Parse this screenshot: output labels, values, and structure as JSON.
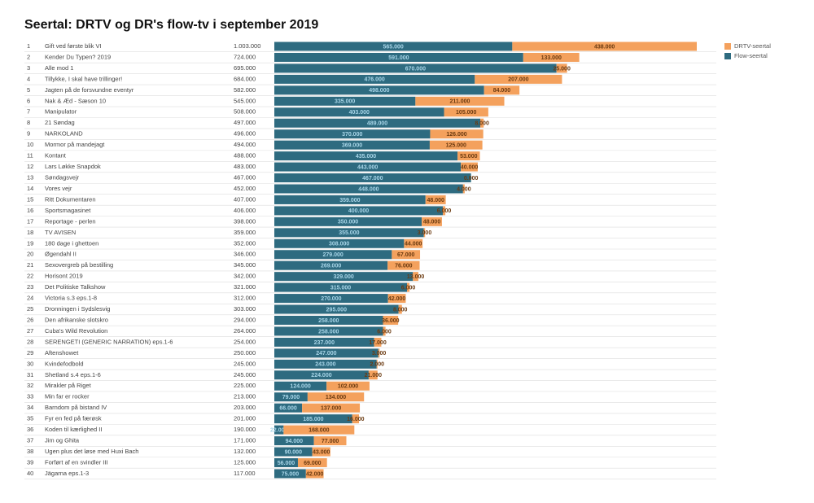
{
  "chart_data": {
    "type": "stacked-barh",
    "title": "Seertal: DRTV og DR's flow-tv i september 2019",
    "ranks": [
      1,
      2,
      3,
      4,
      5,
      6,
      7,
      8,
      9,
      10,
      11,
      12,
      13,
      14,
      15,
      16,
      17,
      18,
      19,
      20,
      21,
      22,
      23,
      24,
      25,
      26,
      27,
      28,
      29,
      30,
      31,
      32,
      33,
      34,
      35,
      36,
      37,
      38,
      39,
      40
    ],
    "categories": [
      "Gift ved første blik VI",
      "Kender Du Typen? 2019",
      "Alle mod 1",
      "Tillykke, I skal have trillinger!",
      "Jagten på de forsvundne eventyr",
      "Nak & Æd - Sæson 10",
      "Manipulator",
      "21 Søndag",
      "NARKOLAND",
      "Mormor på mandejagt",
      "Kontant",
      "Lars Løkke Snapdok",
      "Søndagsvejr",
      "Vores vejr",
      "Ritt Dokumentaren",
      "Sportsmagasinet",
      "Reportage - perlen",
      "TV AVISEN",
      "180 dage i ghettoen",
      "Øgendahl II",
      "Sexovergreb på bestilling",
      "Horisont 2019",
      "Det Politiske Talkshow",
      "Victoria s.3 eps.1-8",
      "Dronningen i Sydslesvig",
      "Den afrikanske slotskro",
      "Cuba's Wild Revolution",
      "SERENGETI (GENERIC NARRATION) eps.1-6",
      "Aftenshowet",
      "Kvindefodbold",
      "Shetland s.4 eps.1-6",
      "Mirakler på Riget",
      "Min far er rocker",
      "Barndom på bistand IV",
      "Fyr en fed på færøsk",
      "Koden til kærlighed II",
      "Jim og Ghita",
      "Ugen plus det løse med Huxi Bach",
      "Forført af en svindler III",
      "Jägarna eps.1-3"
    ],
    "totals": {
      "values": [
        1003000,
        724000,
        695000,
        684000,
        582000,
        545000,
        508000,
        497000,
        496000,
        494000,
        488000,
        483000,
        467000,
        452000,
        407000,
        406000,
        398000,
        359000,
        352000,
        346000,
        345000,
        342000,
        321000,
        312000,
        303000,
        294000,
        264000,
        254000,
        250000,
        245000,
        245000,
        225000,
        213000,
        203000,
        201000,
        190000,
        171000,
        132000,
        125000,
        117000
      ],
      "value_labels": [
        "1.003.000",
        "724.000",
        "695.000",
        "684.000",
        "582.000",
        "545.000",
        "508.000",
        "497.000",
        "496.000",
        "494.000",
        "488.000",
        "483.000",
        "467.000",
        "452.000",
        "407.000",
        "406.000",
        "398.000",
        "359.000",
        "352.000",
        "346.000",
        "345.000",
        "342.000",
        "321.000",
        "312.000",
        "303.000",
        "294.000",
        "264.000",
        "254.000",
        "250.000",
        "245.000",
        "245.000",
        "225.000",
        "213.000",
        "203.000",
        "201.000",
        "190.000",
        "171.000",
        "132.000",
        "125.000",
        "117.000"
      ]
    },
    "series": [
      {
        "name": "Flow-seertal",
        "color": "#2e6b80",
        "values": [
          565000,
          591000,
          670000,
          476000,
          498000,
          335000,
          403000,
          489000,
          370000,
          369000,
          435000,
          443000,
          467000,
          448000,
          359000,
          400000,
          350000,
          355000,
          308000,
          279000,
          269000,
          329000,
          315000,
          270000,
          295000,
          258000,
          258000,
          237000,
          247000,
          243000,
          224000,
          124000,
          79000,
          66000,
          185000,
          22000,
          94000,
          90000,
          56000,
          75000
        ],
        "value_labels": [
          "565.000",
          "591.000",
          "670.000",
          "476.000",
          "498.000",
          "335.000",
          "403.000",
          "489.000",
          "370.000",
          "369.000",
          "435.000",
          "443.000",
          "467.000",
          "448.000",
          "359.000",
          "400.000",
          "350.000",
          "355.000",
          "308.000",
          "279.000",
          "269.000",
          "329.000",
          "315.000",
          "270.000",
          "295.000",
          "258.000",
          "258.000",
          "237.000",
          "247.000",
          "243.000",
          "224.000",
          "124.000",
          "79.000",
          "66.000",
          "185.000",
          "22.000",
          "94.000",
          "90.000",
          "56.000",
          "75.000"
        ]
      },
      {
        "name": "DRTV-seertal",
        "color": "#f4a15d",
        "values": [
          438000,
          133000,
          25000,
          207000,
          84000,
          211000,
          105000,
          8000,
          126000,
          125000,
          53000,
          40000,
          0,
          4000,
          48000,
          6000,
          48000,
          3000,
          44000,
          67000,
          76000,
          13000,
          6000,
          42000,
          8000,
          36000,
          6000,
          17000,
          3000,
          2000,
          21000,
          102000,
          134000,
          137000,
          16000,
          168000,
          77000,
          43000,
          69000,
          42000
        ],
        "value_labels": [
          "438.000",
          "133.000",
          "25.000",
          "207.000",
          "84.000",
          "211.000",
          "105.000",
          "8.000",
          "126.000",
          "125.000",
          "53.000",
          "40.000",
          "0.000",
          "4.000",
          "48.000",
          "6.000",
          "48.000",
          "3.000",
          "44.000",
          "67.000",
          "76.000",
          "13.000",
          "6.000",
          "42.000",
          "8.000",
          "36.000",
          "6.000",
          "17.000",
          "3.000",
          "2.000",
          "21.000",
          "102.000",
          "134.000",
          "137.000",
          "16.000",
          "168.000",
          "77.000",
          "43.000",
          "69.000",
          "42.000"
        ]
      }
    ],
    "xlim": [
      0,
      1003000
    ]
  }
}
